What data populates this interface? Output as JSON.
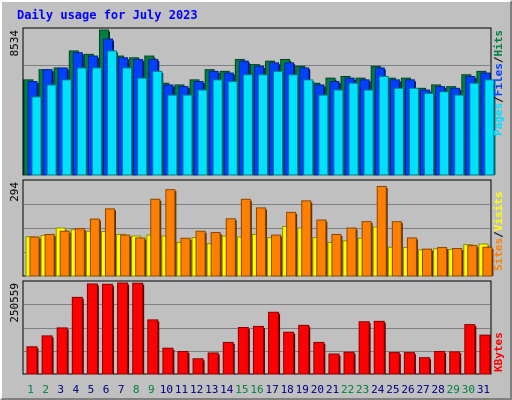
{
  "title": "Daily usage for July 2023",
  "colors": {
    "background": "#c0c0c0",
    "plot_bg": "#c0c0c0",
    "title": "#0000ff",
    "hits": "#008040",
    "files": "#0040ff",
    "pages": "#00e0ff",
    "visits": "#ffff00",
    "sites": "#ff8000",
    "kbytes": "#ff0000",
    "axis_label": "#000000",
    "weekend_day": "#008040",
    "weekday_day": "#000080"
  },
  "chart_data": [
    {
      "type": "bar",
      "panel": "hits-files-pages",
      "categories": [
        "1",
        "2",
        "3",
        "4",
        "5",
        "6",
        "7",
        "8",
        "9",
        "10",
        "11",
        "12",
        "13",
        "14",
        "15",
        "16",
        "17",
        "18",
        "19",
        "20",
        "21",
        "22",
        "23",
        "24",
        "25",
        "26",
        "27",
        "28",
        "29",
        "30",
        "31"
      ],
      "weekend_days": [
        "1",
        "2",
        "8",
        "9",
        "15",
        "16",
        "22",
        "23",
        "29",
        "30"
      ],
      "ymax_label": "8534",
      "ylim": [
        0,
        8534
      ],
      "series": [
        {
          "name": "Hits",
          "values": [
            5600,
            6200,
            6300,
            7300,
            7100,
            8534,
            7000,
            6900,
            7000,
            5400,
            5300,
            5600,
            6200,
            6100,
            6800,
            6500,
            6700,
            6800,
            6400,
            5400,
            5700,
            5800,
            5700,
            6400,
            5700,
            5700,
            5100,
            5300,
            5200,
            5900,
            6100
          ]
        },
        {
          "name": "Files",
          "values": [
            5500,
            6200,
            6300,
            7200,
            7000,
            8000,
            6900,
            6800,
            6800,
            5300,
            5200,
            5500,
            6100,
            6000,
            6700,
            6400,
            6600,
            6600,
            6300,
            5300,
            5500,
            5700,
            5600,
            6300,
            5600,
            5600,
            5000,
            5200,
            5100,
            5800,
            6000
          ]
        },
        {
          "name": "Pages",
          "values": [
            4600,
            5300,
            5600,
            6300,
            6300,
            7300,
            6300,
            5700,
            6100,
            4700,
            4700,
            5000,
            5600,
            5500,
            5900,
            5900,
            6100,
            5900,
            5600,
            4700,
            5000,
            5400,
            5000,
            5800,
            5100,
            5100,
            4800,
            4900,
            4700,
            5400,
            5600
          ]
        }
      ]
    },
    {
      "type": "bar",
      "panel": "visits-sites",
      "categories": [
        "1",
        "2",
        "3",
        "4",
        "5",
        "6",
        "7",
        "8",
        "9",
        "10",
        "11",
        "12",
        "13",
        "14",
        "15",
        "16",
        "17",
        "18",
        "19",
        "20",
        "21",
        "22",
        "23",
        "24",
        "25",
        "26",
        "27",
        "28",
        "29",
        "30",
        "31"
      ],
      "ymax_label": "294",
      "ylim": [
        0,
        294
      ],
      "series": [
        {
          "name": "Visits",
          "values": [
            123,
            127,
            150,
            145,
            140,
            139,
            130,
            125,
            128,
            125,
            105,
            120,
            101,
            125,
            122,
            130,
            120,
            155,
            150,
            120,
            105,
            110,
            118,
            153,
            90,
            89,
            82,
            85,
            83,
            98,
            100
          ]
        },
        {
          "name": "Sites",
          "values": [
            122,
            130,
            140,
            148,
            178,
            210,
            128,
            119,
            240,
            270,
            118,
            140,
            136,
            179,
            240,
            213,
            128,
            199,
            235,
            175,
            130,
            150,
            170,
            280,
            170,
            119,
            84,
            89,
            86,
            95,
            90
          ]
        }
      ]
    },
    {
      "type": "bar",
      "panel": "kbytes",
      "categories": [
        "1",
        "2",
        "3",
        "4",
        "5",
        "6",
        "7",
        "8",
        "9",
        "10",
        "11",
        "12",
        "13",
        "14",
        "15",
        "16",
        "17",
        "18",
        "19",
        "20",
        "21",
        "22",
        "23",
        "24",
        "25",
        "26",
        "27",
        "28",
        "29",
        "30",
        "31"
      ],
      "ymax_label": "250559",
      "ylim": [
        0,
        250559
      ],
      "series": [
        {
          "name": "KBytes",
          "values": [
            75000,
            105000,
            127000,
            211000,
            248000,
            247000,
            250559,
            250000,
            149000,
            71000,
            62000,
            42000,
            58000,
            87000,
            128000,
            131000,
            170000,
            115000,
            134000,
            87000,
            55000,
            60000,
            144000,
            145000,
            59000,
            59000,
            45000,
            62000,
            61000,
            136000,
            107000
          ]
        }
      ]
    }
  ],
  "right_labels": {
    "top": [
      "Pages",
      "Files",
      "Hits"
    ],
    "middle": [
      "Sites",
      "Visits"
    ],
    "bottom": [
      "KBytes"
    ],
    "separator": "/"
  }
}
